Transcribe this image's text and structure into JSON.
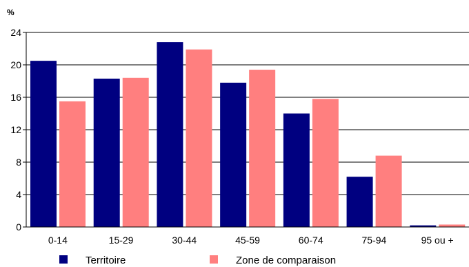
{
  "chart_data": {
    "type": "bar",
    "y_unit": "%",
    "categories": [
      "0-14",
      "15-29",
      "30-44",
      "45-59",
      "60-74",
      "75-94",
      "95 ou +"
    ],
    "series": [
      {
        "name": "Territoire",
        "color": "#000080",
        "values": [
          20.5,
          18.3,
          22.8,
          17.8,
          14.0,
          6.2,
          0.2
        ]
      },
      {
        "name": "Zone de comparaison",
        "color": "#ff7f7f",
        "values": [
          15.5,
          18.4,
          21.9,
          19.4,
          15.8,
          8.8,
          0.3
        ]
      }
    ],
    "ylim": [
      0,
      24
    ],
    "yticks": [
      0,
      4,
      8,
      12,
      16,
      20,
      24
    ],
    "grid": true,
    "legend": "bottom"
  }
}
